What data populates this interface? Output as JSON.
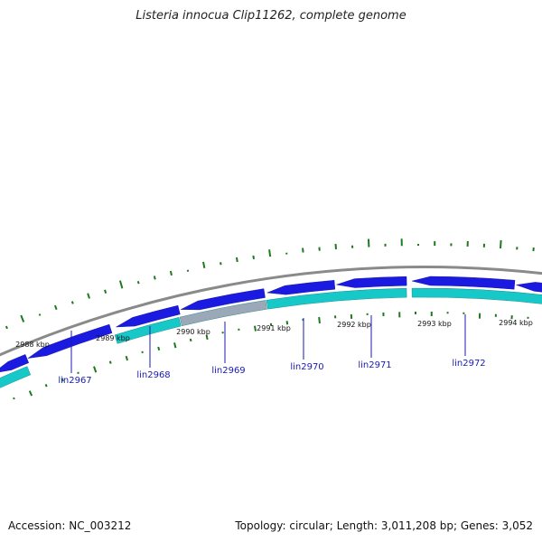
{
  "title": "Listeria innocua Clip11262, complete genome",
  "footer": {
    "accession": "Accession: NC_003212",
    "summary": "Topology: circular; Length: 3,011,208 bp; Genes: 3,052"
  },
  "colors": {
    "forward_gene": "#1a1ae0",
    "reverse_gene": "#16c8c8",
    "rna_gene": "#9aa8b8",
    "backbone": "#8a8a8a",
    "ticks": "#1f7a1f",
    "gene_label": "#1a1ab3"
  },
  "kbp_labels": [
    "2988 kbp",
    "2989 kbp",
    "2990 kbp",
    "2991 kbp",
    "2992 kbp",
    "2993 kbp",
    "2994 kbp"
  ],
  "gene_labels": [
    "lin2967",
    "lin2968",
    "lin2969",
    "lin2970",
    "lin2971",
    "lin2972"
  ]
}
